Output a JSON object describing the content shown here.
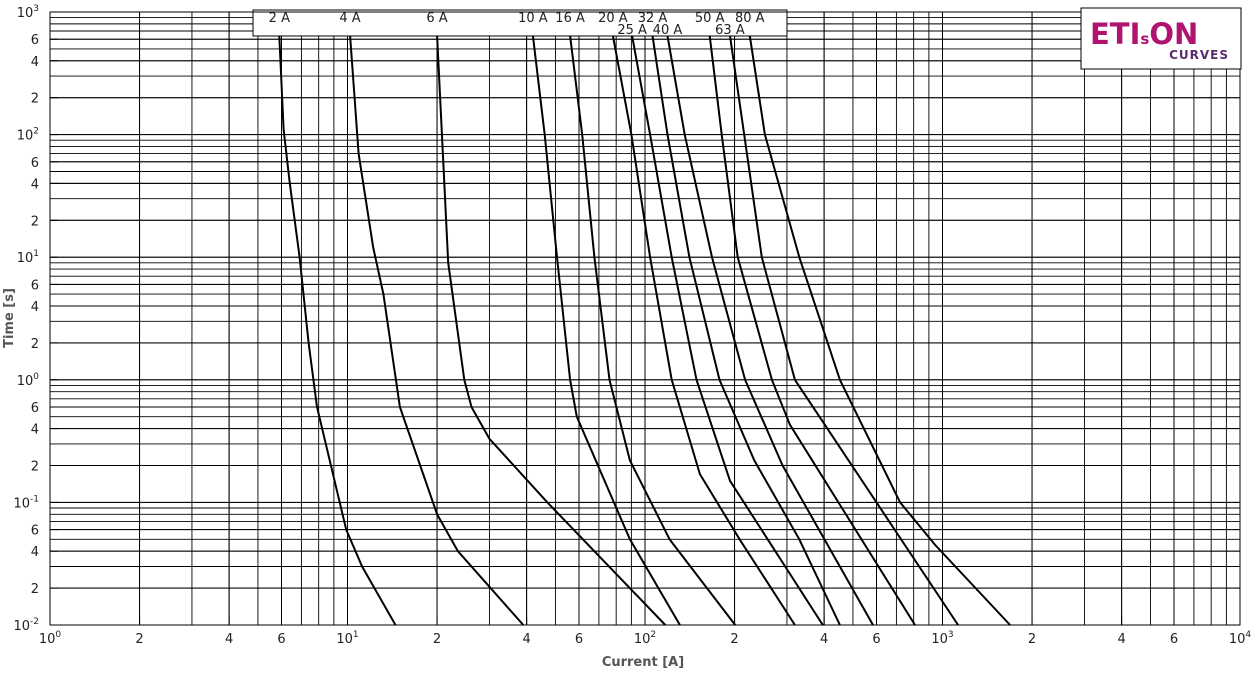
{
  "chart_data": {
    "type": "line",
    "xlabel": "Current [A]",
    "ylabel": "Time [s]",
    "xscale": "log",
    "yscale": "log",
    "grid": true,
    "minor_grid": true,
    "xlim": [
      1,
      10000
    ],
    "ylim": [
      0.01,
      1000
    ],
    "xticks": [
      {
        "value": 1,
        "label": "10",
        "sup": "0"
      },
      2,
      4,
      6,
      {
        "value": 10,
        "label": "10",
        "sup": "1"
      },
      {
        "value": 20,
        "label": "2"
      },
      {
        "value": 40,
        "label": "4"
      },
      {
        "value": 60,
        "label": "6"
      },
      {
        "value": 100,
        "label": "10",
        "sup": "2"
      },
      {
        "value": 200,
        "label": "2"
      },
      {
        "value": 400,
        "label": "4"
      },
      {
        "value": 600,
        "label": "6"
      },
      {
        "value": 1000,
        "label": "10",
        "sup": "3"
      },
      {
        "value": 2000,
        "label": "2"
      },
      {
        "value": 4000,
        "label": "4"
      },
      {
        "value": 6000,
        "label": "6"
      },
      {
        "value": 10000,
        "label": "10",
        "sup": "4"
      }
    ],
    "yticks": [
      {
        "value": 0.01,
        "label": "10",
        "sup": "-2"
      },
      {
        "value": 0.02,
        "label": "2"
      },
      {
        "value": 0.04,
        "label": "4"
      },
      {
        "value": 0.06,
        "label": "6"
      },
      {
        "value": 0.1,
        "label": "10",
        "sup": "-1"
      },
      {
        "value": 0.2,
        "label": "2"
      },
      {
        "value": 0.4,
        "label": "4"
      },
      {
        "value": 0.6,
        "label": "6"
      },
      {
        "value": 1,
        "label": "10",
        "sup": "0"
      },
      2,
      4,
      6,
      {
        "value": 10,
        "label": "10",
        "sup": "1"
      },
      {
        "value": 20,
        "label": "2"
      },
      {
        "value": 40,
        "label": "4"
      },
      {
        "value": 60,
        "label": "6"
      },
      {
        "value": 100,
        "label": "10",
        "sup": "2"
      },
      {
        "value": 200,
        "label": "2"
      },
      {
        "value": 400,
        "label": "4"
      },
      {
        "value": 600,
        "label": "6"
      },
      {
        "value": 1000,
        "label": "10",
        "sup": "3"
      }
    ],
    "series": [
      {
        "name": "2 A",
        "color": "#000000",
        "x": [
          5.9,
          6.1,
          6.4,
          6.9,
          7.4,
          7.9,
          9.9,
          11.2,
          14.5
        ],
        "values": [
          640,
          110,
          40,
          10,
          2,
          0.6,
          0.06,
          0.03,
          0.01
        ]
      },
      {
        "name": "4 A",
        "color": "#000000",
        "x": [
          10.2,
          10.9,
          12.2,
          13.2,
          15,
          20,
          23.5,
          39
        ],
        "values": [
          640,
          70,
          12,
          5,
          0.6,
          0.08,
          0.04,
          0.01
        ]
      },
      {
        "name": "6 A",
        "color": "#000000",
        "x": [
          20,
          21.8,
          24.7,
          26.1,
          30,
          47,
          117
        ],
        "values": [
          640,
          9,
          1,
          0.6,
          0.33,
          0.1,
          0.01
        ]
      },
      {
        "name": "10 A",
        "color": "#000000",
        "x": [
          42,
          46,
          50.6,
          56,
          59,
          89,
          131
        ],
        "values": [
          640,
          100,
          10,
          1,
          0.5,
          0.05,
          0.01
        ]
      },
      {
        "name": "16 A",
        "color": "#000000",
        "x": [
          56,
          61.5,
          67.6,
          76,
          89,
          121,
          201
        ],
        "values": [
          640,
          100,
          10,
          1,
          0.22,
          0.05,
          0.01
        ]
      },
      {
        "name": "20 A",
        "color": "#000000",
        "x": [
          78,
          90,
          104,
          123,
          153,
          208,
          319
        ],
        "values": [
          640,
          100,
          10,
          1,
          0.17,
          0.05,
          0.01
        ]
      },
      {
        "name": "25 A",
        "color": "#000000",
        "x": [
          90.5,
          104,
          123,
          149,
          193,
          284,
          396
        ],
        "values": [
          640,
          100,
          10,
          1,
          0.15,
          0.035,
          0.01
        ]
      },
      {
        "name": "32 A",
        "color": "#000000",
        "x": [
          106,
          119,
          141,
          178,
          233,
          330,
          452
        ],
        "values": [
          640,
          100,
          10,
          1,
          0.22,
          0.05,
          0.01
        ]
      },
      {
        "name": "40 A",
        "color": "#000000",
        "x": [
          119,
          136,
          168,
          217,
          290,
          584
        ],
        "values": [
          640,
          100,
          10,
          1,
          0.2,
          0.01
        ]
      },
      {
        "name": "50 A",
        "color": "#000000",
        "x": [
          165,
          181,
          205,
          267,
          307,
          808
        ],
        "values": [
          640,
          100,
          10,
          1,
          0.43,
          0.01
        ]
      },
      {
        "name": "63 A",
        "color": "#000000",
        "x": [
          193,
          247,
          319,
          1128
        ],
        "values": [
          640,
          10,
          1,
          0.01
        ]
      },
      {
        "name": "80 A",
        "color": "#000000",
        "x": [
          225,
          253,
          330,
          452,
          720,
          944,
          1687
        ],
        "values": [
          640,
          100,
          10,
          1,
          0.1,
          0.045,
          0.01
        ]
      }
    ]
  },
  "logo": {
    "text1": "ETI",
    "sub": "s",
    "text2": "ON",
    "caption": "CURVES"
  }
}
